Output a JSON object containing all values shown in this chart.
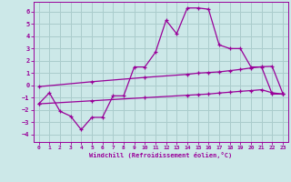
{
  "xlabel": "Windchill (Refroidissement éolien,°C)",
  "bg_color": "#cce8e8",
  "grid_color": "#aacccc",
  "line_color": "#990099",
  "x_ticks": [
    0,
    1,
    2,
    3,
    4,
    5,
    6,
    7,
    8,
    9,
    10,
    11,
    12,
    13,
    14,
    15,
    16,
    17,
    18,
    19,
    20,
    21,
    22,
    23
  ],
  "y_ticks": [
    -4,
    -3,
    -2,
    -1,
    0,
    1,
    2,
    3,
    4,
    5,
    6
  ],
  "ylim": [
    -4.6,
    6.8
  ],
  "xlim": [
    -0.5,
    23.5
  ],
  "line1_x": [
    0,
    1,
    2,
    3,
    4,
    5,
    6,
    7,
    8,
    9,
    10,
    11,
    12,
    13,
    14,
    15,
    16,
    17,
    18,
    19,
    20,
    21,
    22,
    23
  ],
  "line1_y": [
    -1.5,
    -0.6,
    -2.1,
    -2.5,
    -3.6,
    -2.6,
    -2.6,
    -0.85,
    -0.85,
    1.5,
    1.5,
    2.7,
    5.3,
    4.2,
    6.3,
    6.3,
    6.2,
    3.3,
    3.0,
    3.0,
    1.5,
    1.5,
    -0.7,
    -0.7
  ],
  "line2_x": [
    0,
    5,
    10,
    14,
    15,
    16,
    17,
    18,
    19,
    20,
    21,
    22,
    23
  ],
  "line2_y": [
    -0.1,
    0.3,
    0.65,
    0.9,
    1.0,
    1.05,
    1.1,
    1.2,
    1.3,
    1.42,
    1.52,
    1.55,
    -0.65
  ],
  "line3_x": [
    0,
    5,
    10,
    14,
    15,
    16,
    17,
    18,
    19,
    20,
    21,
    22,
    23
  ],
  "line3_y": [
    -1.5,
    -1.25,
    -1.0,
    -0.8,
    -0.75,
    -0.7,
    -0.62,
    -0.55,
    -0.48,
    -0.42,
    -0.35,
    -0.6,
    -0.7
  ]
}
